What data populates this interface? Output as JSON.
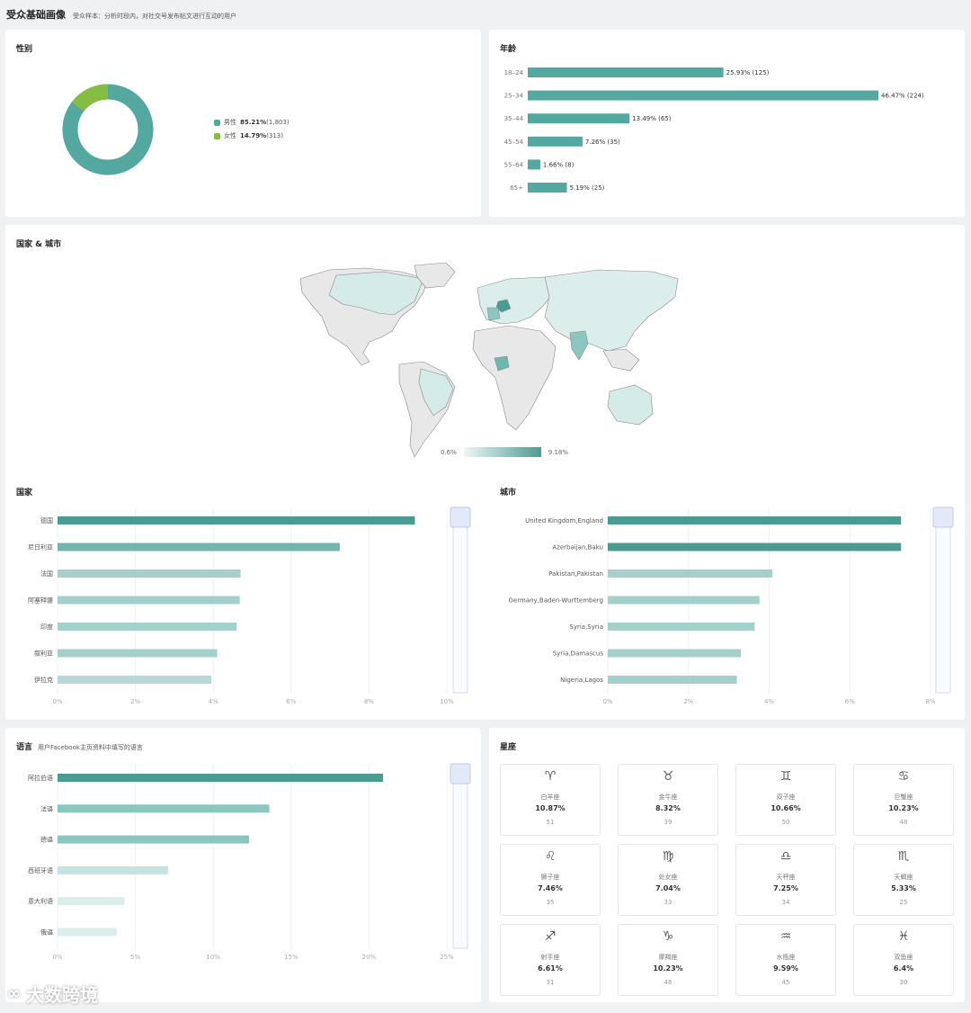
{
  "header": {
    "title": "受众基础画像",
    "subtitle": "受众样本：分析时段内，对社交号发布帖文进行互动的用户"
  },
  "gender": {
    "title": "性别",
    "items": [
      {
        "label": "男性",
        "pct": "85.21%",
        "count": "(1,803)",
        "value": 85.21,
        "color": "#53a99f"
      },
      {
        "label": "女性",
        "pct": "14.79%",
        "count": "(313)",
        "value": 14.79,
        "color": "#84bd41"
      }
    ]
  },
  "age": {
    "title": "年龄",
    "chart_data": {
      "type": "bar",
      "categories": [
        "18–24",
        "25–34",
        "35–44",
        "45–54",
        "55–64",
        "65+"
      ],
      "values": [
        25.93,
        46.47,
        13.49,
        7.26,
        1.66,
        5.19
      ],
      "counts": [
        125,
        224,
        65,
        35,
        8,
        25
      ],
      "labels": [
        "25.93% (125)",
        "46.47% (224)",
        "13.49% (65)",
        "7.26% (35)",
        "1.66% (8)",
        "5.19% (25)"
      ]
    }
  },
  "geo": {
    "title": "国家 & 城市",
    "legend_min": "0.6%",
    "legend_max": "9.18%"
  },
  "country": {
    "title": "国家",
    "chart_data": {
      "type": "bar",
      "categories": [
        "德国",
        "尼日利亚",
        "法国",
        "阿塞拜疆",
        "印度",
        "叙利亚",
        "伊拉克"
      ],
      "values": [
        9.18,
        7.25,
        4.7,
        4.68,
        4.6,
        4.1,
        3.95
      ],
      "xlim": [
        0,
        10
      ],
      "ticks": [
        "0%",
        "2%",
        "4%",
        "6%",
        "8%",
        "10%"
      ]
    }
  },
  "city": {
    "title": "城市",
    "chart_data": {
      "type": "bar",
      "categories": [
        "United Kingdom,England",
        "Azerbaijan,Baku",
        "Pakistan,Pakistan",
        "Germany,Baden-Wurttemberg",
        "Syria,Syria",
        "Syria,Damascus",
        "Nigeria,Lagos"
      ],
      "values": [
        7.27,
        7.27,
        4.08,
        3.76,
        3.64,
        3.3,
        3.2
      ],
      "xlim": [
        0,
        8
      ],
      "ticks": [
        "0%",
        "2%",
        "4%",
        "6%",
        "8%"
      ]
    }
  },
  "language": {
    "title": "语言",
    "subtitle": "用户Facebook主页资料中填写的语言",
    "chart_data": {
      "type": "bar",
      "categories": [
        "阿拉伯语",
        "法语",
        "德语",
        "西班牙语",
        "意大利语",
        "俄语"
      ],
      "values": [
        20.9,
        13.6,
        12.3,
        7.1,
        4.3,
        3.8
      ],
      "xlim": [
        0,
        25
      ],
      "ticks": [
        "0%",
        "5%",
        "10%",
        "15%",
        "20%",
        "25%"
      ]
    }
  },
  "zodiac": {
    "title": "星座",
    "items": [
      {
        "sym": "♈",
        "name": "白羊座",
        "pct": "10.87%",
        "count": "51"
      },
      {
        "sym": "♉",
        "name": "金牛座",
        "pct": "8.32%",
        "count": "39"
      },
      {
        "sym": "♊",
        "name": "双子座",
        "pct": "10.66%",
        "count": "50"
      },
      {
        "sym": "♋",
        "name": "巨蟹座",
        "pct": "10.23%",
        "count": "48"
      },
      {
        "sym": "♌",
        "name": "狮子座",
        "pct": "7.46%",
        "count": "35"
      },
      {
        "sym": "♍",
        "name": "处女座",
        "pct": "7.04%",
        "count": "33"
      },
      {
        "sym": "♎",
        "name": "天秤座",
        "pct": "7.25%",
        "count": "34"
      },
      {
        "sym": "♏",
        "name": "天蝎座",
        "pct": "5.33%",
        "count": "25"
      },
      {
        "sym": "♐",
        "name": "射手座",
        "pct": "6.61%",
        "count": "31"
      },
      {
        "sym": "♑",
        "name": "摩羯座",
        "pct": "10.23%",
        "count": "48"
      },
      {
        "sym": "♒",
        "name": "水瓶座",
        "pct": "9.59%",
        "count": "45"
      },
      {
        "sym": "♓",
        "name": "双鱼座",
        "pct": "6.4%",
        "count": "30"
      }
    ]
  },
  "watermark": "大数跨境",
  "colors": {
    "dark": "#4a9c92",
    "mid": "#8cc7bf",
    "light": "#c5e3df",
    "lighter": "#dceeec"
  }
}
